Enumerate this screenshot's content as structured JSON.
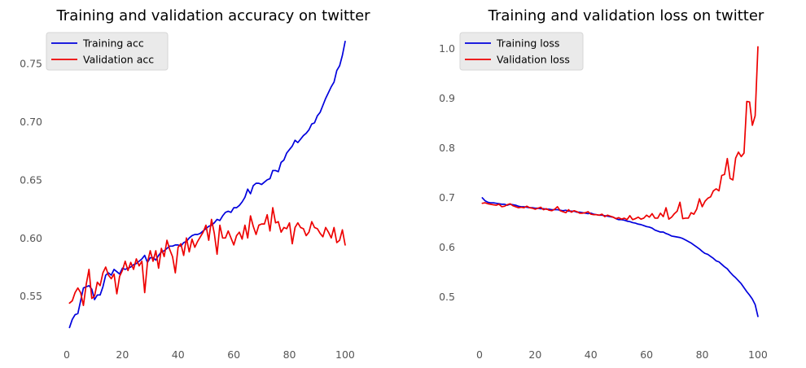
{
  "figure": {
    "background": "#ffffff"
  },
  "chart_data": [
    {
      "type": "line",
      "title": "Training and validation accuracy on twitter",
      "xlabel": "",
      "ylabel": "",
      "xlim": [
        -7,
        112
      ],
      "ylim": [
        0.512,
        0.778
      ],
      "xticks": [
        0,
        20,
        40,
        60,
        80,
        100
      ],
      "yticks": [
        0.55,
        0.6,
        0.65,
        0.7,
        0.75
      ],
      "ytick_labels": [
        "0.55",
        "0.60",
        "0.65",
        "0.70",
        "0.75"
      ],
      "grid": false,
      "legend_position": "top-left",
      "x": [
        1,
        2,
        3,
        4,
        5,
        6,
        7,
        8,
        9,
        10,
        11,
        12,
        13,
        14,
        15,
        16,
        17,
        18,
        19,
        20,
        21,
        22,
        23,
        24,
        25,
        26,
        27,
        28,
        29,
        30,
        31,
        32,
        33,
        34,
        35,
        36,
        37,
        38,
        39,
        40,
        41,
        42,
        43,
        44,
        45,
        46,
        47,
        48,
        49,
        50,
        51,
        52,
        53,
        54,
        55,
        56,
        57,
        58,
        59,
        60,
        61,
        62,
        63,
        64,
        65,
        66,
        67,
        68,
        69,
        70,
        71,
        72,
        73,
        74,
        75,
        76,
        77,
        78,
        79,
        80,
        81,
        82,
        83,
        84,
        85,
        86,
        87,
        88,
        89,
        90,
        91,
        92,
        93,
        94,
        95,
        96,
        97,
        98,
        99,
        100
      ],
      "series": [
        {
          "name": "Training acc",
          "color": "#0000dd",
          "values": [
            0.523,
            0.53,
            0.534,
            0.535,
            0.546,
            0.557,
            0.558,
            0.559,
            0.556,
            0.547,
            0.551,
            0.551,
            0.558,
            0.568,
            0.57,
            0.568,
            0.573,
            0.571,
            0.569,
            0.574,
            0.573,
            0.574,
            0.575,
            0.577,
            0.578,
            0.58,
            0.582,
            0.585,
            0.579,
            0.583,
            0.583,
            0.581,
            0.585,
            0.588,
            0.589,
            0.591,
            0.593,
            0.593,
            0.594,
            0.594,
            0.593,
            0.596,
            0.597,
            0.6,
            0.602,
            0.603,
            0.603,
            0.604,
            0.606,
            0.608,
            0.61,
            0.611,
            0.613,
            0.616,
            0.615,
            0.619,
            0.622,
            0.623,
            0.622,
            0.626,
            0.626,
            0.628,
            0.631,
            0.635,
            0.642,
            0.638,
            0.645,
            0.647,
            0.647,
            0.646,
            0.648,
            0.65,
            0.651,
            0.658,
            0.658,
            0.657,
            0.665,
            0.667,
            0.673,
            0.676,
            0.679,
            0.684,
            0.682,
            0.685,
            0.688,
            0.69,
            0.693,
            0.698,
            0.699,
            0.705,
            0.708,
            0.714,
            0.72,
            0.725,
            0.73,
            0.734,
            0.744,
            0.748,
            0.757,
            0.769
          ]
        },
        {
          "name": "Validation acc",
          "color": "#ee0000",
          "values": [
            0.544,
            0.546,
            0.553,
            0.557,
            0.553,
            0.542,
            0.56,
            0.573,
            0.548,
            0.55,
            0.562,
            0.559,
            0.57,
            0.575,
            0.568,
            0.565,
            0.569,
            0.552,
            0.567,
            0.572,
            0.58,
            0.572,
            0.579,
            0.573,
            0.582,
            0.576,
            0.58,
            0.553,
            0.579,
            0.589,
            0.58,
            0.589,
            0.574,
            0.591,
            0.584,
            0.598,
            0.59,
            0.584,
            0.57,
            0.592,
            0.595,
            0.585,
            0.6,
            0.588,
            0.599,
            0.592,
            0.597,
            0.601,
            0.605,
            0.611,
            0.598,
            0.616,
            0.604,
            0.586,
            0.611,
            0.6,
            0.6,
            0.606,
            0.6,
            0.594,
            0.602,
            0.605,
            0.599,
            0.611,
            0.6,
            0.619,
            0.61,
            0.603,
            0.611,
            0.612,
            0.612,
            0.62,
            0.606,
            0.626,
            0.613,
            0.614,
            0.605,
            0.609,
            0.608,
            0.613,
            0.595,
            0.609,
            0.613,
            0.609,
            0.608,
            0.602,
            0.605,
            0.614,
            0.609,
            0.608,
            0.604,
            0.601,
            0.609,
            0.605,
            0.6,
            0.609,
            0.596,
            0.598,
            0.607,
            0.594
          ]
        }
      ]
    },
    {
      "type": "line",
      "title": "Training and validation loss on twitter",
      "xlabel": "",
      "ylabel": "",
      "xlim": [
        -7,
        112
      ],
      "ylim": [
        0.412,
        1.035
      ],
      "xticks": [
        0,
        20,
        40,
        60,
        80,
        100
      ],
      "yticks": [
        0.5,
        0.6,
        0.7,
        0.8,
        0.9,
        1.0
      ],
      "ytick_labels": [
        "0.5",
        "0.6",
        "0.7",
        "0.8",
        "0.9",
        "1.0"
      ],
      "grid": false,
      "legend_position": "top-left",
      "x": [
        1,
        2,
        3,
        4,
        5,
        6,
        7,
        8,
        9,
        10,
        11,
        12,
        13,
        14,
        15,
        16,
        17,
        18,
        19,
        20,
        21,
        22,
        23,
        24,
        25,
        26,
        27,
        28,
        29,
        30,
        31,
        32,
        33,
        34,
        35,
        36,
        37,
        38,
        39,
        40,
        41,
        42,
        43,
        44,
        45,
        46,
        47,
        48,
        49,
        50,
        51,
        52,
        53,
        54,
        55,
        56,
        57,
        58,
        59,
        60,
        61,
        62,
        63,
        64,
        65,
        66,
        67,
        68,
        69,
        70,
        71,
        72,
        73,
        74,
        75,
        76,
        77,
        78,
        79,
        80,
        81,
        82,
        83,
        84,
        85,
        86,
        87,
        88,
        89,
        90,
        91,
        92,
        93,
        94,
        95,
        96,
        97,
        98,
        99,
        100
      ],
      "series": [
        {
          "name": "Training loss",
          "color": "#0000dd",
          "values": [
            0.699,
            0.693,
            0.69,
            0.689,
            0.689,
            0.688,
            0.687,
            0.686,
            0.686,
            0.684,
            0.686,
            0.685,
            0.684,
            0.682,
            0.681,
            0.681,
            0.68,
            0.679,
            0.679,
            0.678,
            0.678,
            0.677,
            0.677,
            0.676,
            0.676,
            0.675,
            0.675,
            0.675,
            0.674,
            0.673,
            0.674,
            0.672,
            0.672,
            0.672,
            0.67,
            0.67,
            0.669,
            0.668,
            0.667,
            0.668,
            0.666,
            0.665,
            0.664,
            0.664,
            0.663,
            0.662,
            0.661,
            0.66,
            0.657,
            0.655,
            0.655,
            0.654,
            0.652,
            0.651,
            0.649,
            0.648,
            0.646,
            0.645,
            0.643,
            0.641,
            0.64,
            0.638,
            0.634,
            0.632,
            0.63,
            0.63,
            0.627,
            0.625,
            0.622,
            0.621,
            0.62,
            0.619,
            0.617,
            0.614,
            0.611,
            0.608,
            0.604,
            0.6,
            0.596,
            0.591,
            0.587,
            0.585,
            0.581,
            0.577,
            0.572,
            0.57,
            0.565,
            0.56,
            0.556,
            0.549,
            0.543,
            0.538,
            0.532,
            0.526,
            0.518,
            0.51,
            0.503,
            0.495,
            0.484,
            0.46
          ]
        },
        {
          "name": "Validation loss",
          "color": "#ee0000",
          "values": [
            0.688,
            0.689,
            0.687,
            0.686,
            0.685,
            0.684,
            0.686,
            0.681,
            0.682,
            0.685,
            0.687,
            0.683,
            0.681,
            0.679,
            0.68,
            0.679,
            0.682,
            0.679,
            0.678,
            0.676,
            0.678,
            0.68,
            0.675,
            0.677,
            0.674,
            0.673,
            0.676,
            0.681,
            0.673,
            0.671,
            0.669,
            0.675,
            0.67,
            0.673,
            0.671,
            0.668,
            0.668,
            0.669,
            0.671,
            0.666,
            0.665,
            0.665,
            0.664,
            0.666,
            0.661,
            0.664,
            0.662,
            0.66,
            0.657,
            0.659,
            0.656,
            0.658,
            0.655,
            0.663,
            0.655,
            0.657,
            0.66,
            0.656,
            0.658,
            0.664,
            0.66,
            0.667,
            0.658,
            0.658,
            0.668,
            0.661,
            0.679,
            0.656,
            0.66,
            0.667,
            0.672,
            0.69,
            0.657,
            0.658,
            0.658,
            0.669,
            0.666,
            0.676,
            0.697,
            0.681,
            0.692,
            0.698,
            0.701,
            0.713,
            0.717,
            0.713,
            0.744,
            0.746,
            0.778,
            0.738,
            0.735,
            0.779,
            0.791,
            0.782,
            0.789,
            0.893,
            0.892,
            0.845,
            0.864,
            1.003
          ]
        }
      ]
    }
  ]
}
